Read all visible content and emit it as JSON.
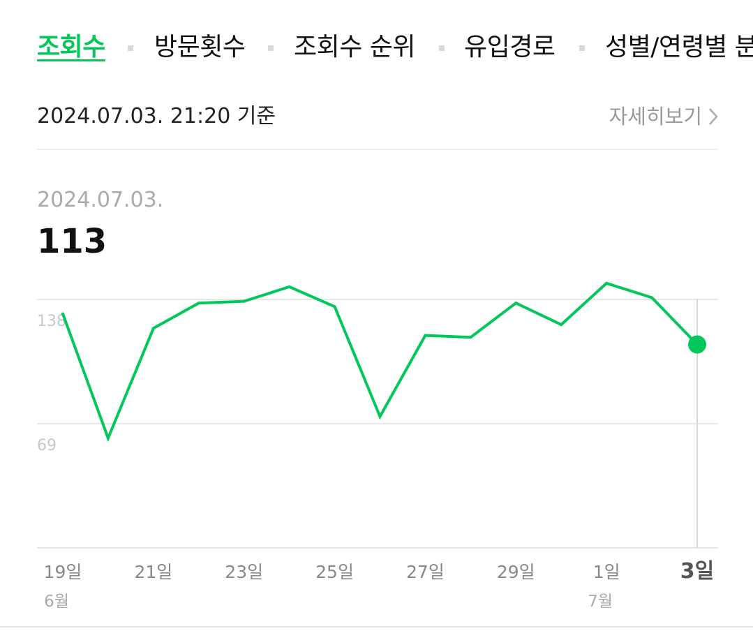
{
  "tabs": [
    {
      "label": "조회수",
      "active": true
    },
    {
      "label": "방문횟수",
      "active": false
    },
    {
      "label": "조회수 순위",
      "active": false
    },
    {
      "label": "유입경로",
      "active": false
    },
    {
      "label": "성별/연령별 분",
      "active": false
    }
  ],
  "basis_text": "2024.07.03. 21:20 기준",
  "detail_link": "자세히보기",
  "selected": {
    "date": "2024.07.03.",
    "value": "113"
  },
  "colors": {
    "accent": "#03c75a",
    "grid": "#e6e6e6",
    "muted": "#999999"
  },
  "chart_data": {
    "type": "line",
    "x": [
      "6/19",
      "6/20",
      "6/21",
      "6/22",
      "6/23",
      "6/24",
      "6/25",
      "6/26",
      "6/27",
      "6/28",
      "6/29",
      "6/30",
      "7/1",
      "7/2",
      "7/3"
    ],
    "series": [
      {
        "values": [
          130,
          61,
          122,
          136,
          137,
          145,
          134,
          73,
          118,
          117,
          136,
          124,
          147,
          139,
          113
        ]
      }
    ],
    "y_ticks": [
      {
        "value": 138,
        "label": "138"
      },
      {
        "value": 69,
        "label": "69"
      }
    ],
    "ylim": [
      0,
      138
    ],
    "x_tick_labels": [
      {
        "index": 0,
        "label": "19일",
        "sub": "6월"
      },
      {
        "index": 2,
        "label": "21일"
      },
      {
        "index": 4,
        "label": "23일"
      },
      {
        "index": 6,
        "label": "25일"
      },
      {
        "index": 8,
        "label": "27일"
      },
      {
        "index": 10,
        "label": "29일"
      },
      {
        "index": 12,
        "label": "1일",
        "sub": "7월"
      },
      {
        "index": 14,
        "label": "3일",
        "highlight": true
      }
    ],
    "selected_index": 14,
    "grid": true
  }
}
